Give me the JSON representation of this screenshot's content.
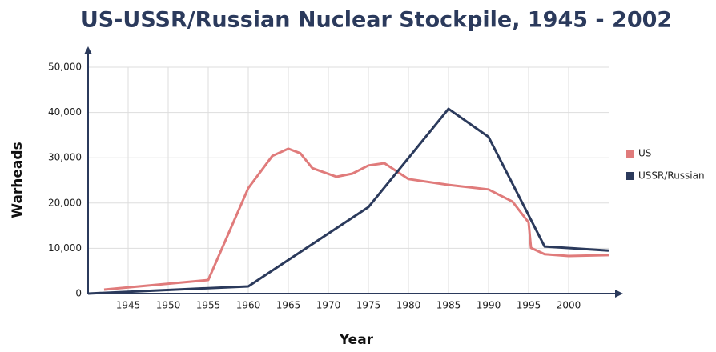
{
  "chart_data": {
    "type": "line",
    "title": "US-USSR/Russian Nuclear Stockpile, 1945 - 2002",
    "x_label": "Year",
    "y_label": "Warheads",
    "xlim": [
      1940,
      2005
    ],
    "xticks": [
      1945,
      1950,
      1955,
      1960,
      1965,
      1970,
      1975,
      1980,
      1985,
      1990,
      1995,
      2000
    ],
    "ylim": [
      0,
      50000
    ],
    "yticks": [
      {
        "value": 0,
        "label": "0"
      },
      {
        "value": 10000,
        "label": "10,000"
      },
      {
        "value": 20000,
        "label": "20,000"
      },
      {
        "value": 30000,
        "label": "30,000"
      },
      {
        "value": 40000,
        "label": "40,000"
      },
      {
        "value": 50000,
        "label": "50,000"
      }
    ],
    "grid": true,
    "legend": "right",
    "series": [
      {
        "name": "US",
        "color": "#e07b7b",
        "x": [
          1942,
          1955,
          1960,
          1963,
          1965,
          1966.5,
          1968,
          1971,
          1973,
          1975,
          1977,
          1980,
          1985,
          1990,
          1993,
          1995,
          1995.3,
          1997,
          2000,
          2005
        ],
        "values": [
          880,
          3000,
          23300,
          30400,
          32000,
          31000,
          27700,
          25800,
          26500,
          28300,
          28800,
          25300,
          24000,
          23000,
          20300,
          15700,
          10100,
          8700,
          8300,
          8500
        ]
      },
      {
        "name": "USSR/Russian",
        "color": "#2b3a5c",
        "x": [
          1940,
          1960,
          1975,
          1985,
          1990,
          1997,
          2005
        ],
        "values": [
          0,
          1600,
          19100,
          40800,
          34600,
          10400,
          9500
        ]
      }
    ]
  }
}
